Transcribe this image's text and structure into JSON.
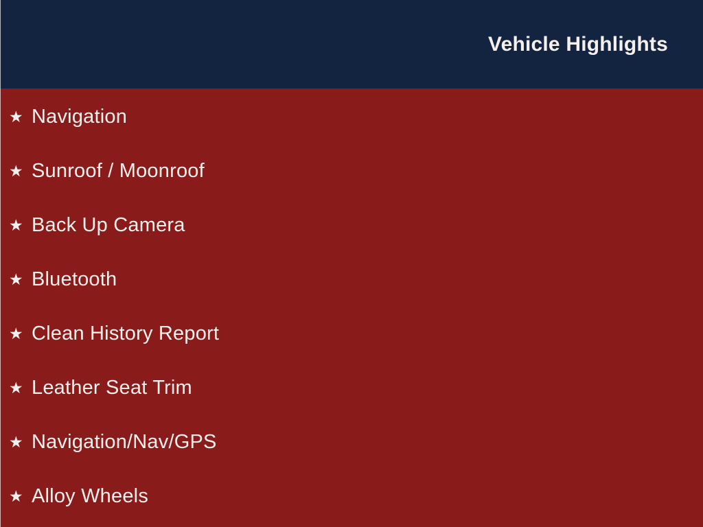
{
  "slide": {
    "header": {
      "title": "Vehicle Highlights"
    },
    "list": {
      "bullet_glyph": "★",
      "items": [
        {
          "label": "Navigation"
        },
        {
          "label": "Sunroof / Moonroof"
        },
        {
          "label": "Back Up Camera"
        },
        {
          "label": "Bluetooth"
        },
        {
          "label": "Clean History Report"
        },
        {
          "label": "Leather Seat Trim"
        },
        {
          "label": "Navigation/Nav/GPS"
        },
        {
          "label": "Alloy Wheels"
        }
      ]
    },
    "colors": {
      "header_background": "#122440",
      "body_background": "#8a1b1b",
      "text": "#f6efec"
    }
  }
}
